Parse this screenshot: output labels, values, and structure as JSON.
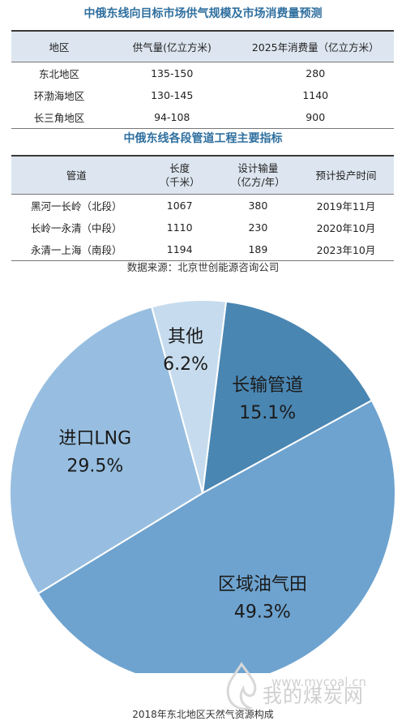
{
  "table1": {
    "title": "中俄东线向目标市场供气规模及市场消费量预测",
    "headers": [
      "地区",
      "供气量(亿立方米)",
      "2025年消费量（亿立方米）"
    ],
    "rows": [
      [
        "东北地区",
        "135-150",
        "280"
      ],
      [
        "环渤海地区",
        "130-145",
        "1140"
      ],
      [
        "长三角地区",
        "94-108",
        "900"
      ]
    ]
  },
  "table2": {
    "title": "中俄东线各段管道工程主要指标",
    "headers": [
      [
        "管道"
      ],
      [
        "长度",
        "（千米）"
      ],
      [
        "设计输量",
        "（亿方/年）"
      ],
      [
        "预计投产时间"
      ]
    ],
    "rows": [
      [
        "黑河一长岭（北段）",
        "1067",
        "380",
        "2019年11月"
      ],
      [
        "长岭一永清（中段）",
        "1110",
        "230",
        "2020年10月"
      ],
      [
        "永清一上海（南段）",
        "1194",
        "189",
        "2023年10月"
      ]
    ]
  },
  "source": "数据来源：北京世创能源咨询公司",
  "chart_data": {
    "type": "pie",
    "title": "2018年东北地区天然气资源构成",
    "slices": [
      {
        "label": "长输管道",
        "value": 15.1,
        "value_label": "15.1%",
        "color": "#4a86b2"
      },
      {
        "label": "区域油气田",
        "value": 49.3,
        "value_label": "49.3%",
        "color": "#6ea3cf"
      },
      {
        "label": "进口LNG",
        "value": 29.5,
        "value_label": "29.5%",
        "color": "#97bee0"
      },
      {
        "label": "其他",
        "value": 6.2,
        "value_label": "6.2%",
        "color": "#c6dcee"
      }
    ],
    "start_angle_deg": -83
  },
  "watermark": {
    "name": "我的煤炭网",
    "url": "www.mycoal.cn"
  }
}
